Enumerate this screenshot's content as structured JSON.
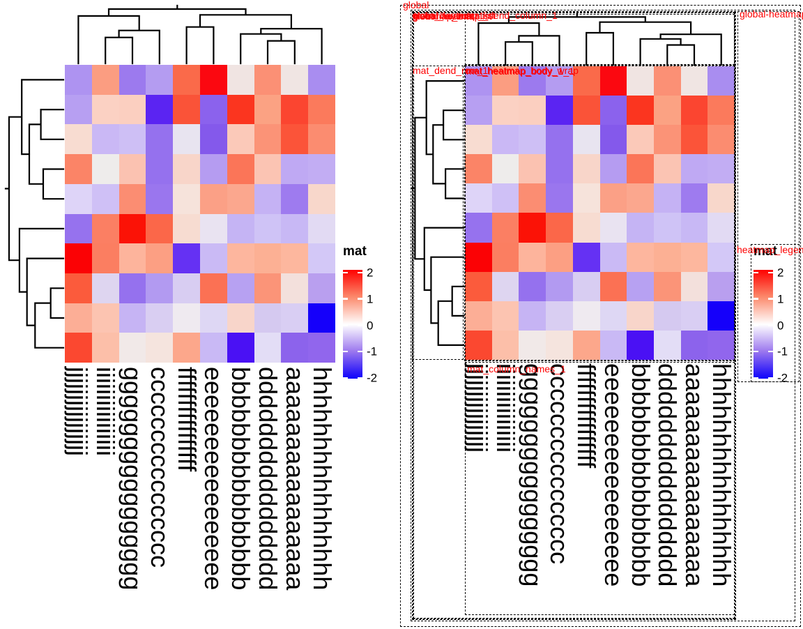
{
  "chart_data": {
    "type": "heatmap",
    "matrix_name": "mat",
    "n_rows": 10,
    "n_cols": 10,
    "columns": [
      "jjjjjjjjjjjjjjjj",
      "iiiiiiiiiiiiiiii",
      "gggggggggggggggg",
      "cccccccccccccccc",
      "ffffffffffffffff",
      "eeeeeeeeeeeeeeee",
      "bbbbbbbbbbbbbbbb",
      "dddddddddddddddd",
      "aaaaaaaaaaaaaaaa",
      "hhhhhhhhhhhhhhhh"
    ],
    "row_labels_visible": false,
    "values": [
      [
        -0.9,
        0.75,
        -1.15,
        -0.85,
        1.3,
        1.95,
        0.15,
        0.85,
        0.1,
        -0.95
      ],
      [
        -0.8,
        0.35,
        0.4,
        -1.8,
        1.45,
        -1.3,
        1.7,
        0.7,
        1.6,
        1.05
      ],
      [
        0.3,
        -0.6,
        -0.55,
        -1.2,
        -0.15,
        -1.4,
        0.4,
        0.85,
        1.4,
        0.9
      ],
      [
        1.0,
        0.05,
        0.5,
        -1.2,
        0.35,
        -0.85,
        1.1,
        0.45,
        -0.75,
        -0.7
      ],
      [
        -0.35,
        -0.55,
        0.9,
        -1.15,
        0.2,
        0.75,
        0.65,
        -0.65,
        -1.1,
        0.3
      ],
      [
        -1.2,
        1.0,
        1.9,
        1.2,
        0.3,
        -0.2,
        -0.65,
        -0.55,
        -0.6,
        -0.3
      ],
      [
        2.0,
        1.0,
        0.55,
        0.75,
        -1.65,
        -0.6,
        0.55,
        0.6,
        0.55,
        -0.5
      ],
      [
        1.3,
        -0.35,
        -1.2,
        -0.9,
        -0.45,
        1.1,
        -0.8,
        0.8,
        0.2,
        -0.75
      ],
      [
        0.6,
        0.45,
        -0.65,
        -0.4,
        -0.1,
        -0.35,
        0.3,
        -0.45,
        -0.4,
        -2.0
      ],
      [
        1.55,
        0.5,
        0.1,
        0.15,
        0.65,
        -0.6,
        -1.75,
        -0.25,
        -1.35,
        -1.3
      ]
    ],
    "cell_colors": [
      [
        "#ae93f1",
        "#fb9d81",
        "#9c7aee",
        "#b49cf1",
        "#fa6a4a",
        "#fb0810",
        "#f0e4e2",
        "#fb9075",
        "#f0e5e3",
        "#a98df0"
      ],
      [
        "#b79ff2",
        "#fbd1c3",
        "#fbcfc0",
        "#5b24f2",
        "#fa5338",
        "#8b62ed",
        "#fb351f",
        "#fba283",
        "#fb4530",
        "#fb7a5c"
      ],
      [
        "#f8dcd1",
        "#cab8f5",
        "#cebff5",
        "#9571ee",
        "#e8e4f0",
        "#8459eb",
        "#fbc9b9",
        "#fb9377",
        "#fb5439",
        "#fb8c70"
      ],
      [
        "#fb8467",
        "#eeeceb",
        "#fbc2b1",
        "#9571ee",
        "#f8d5c9",
        "#b59cf1",
        "#fb7558",
        "#fbc4b3",
        "#bfa9f3",
        "#c2adf3"
      ],
      [
        "#ded4f8",
        "#cfc0f6",
        "#fb8d72",
        "#9a76ee",
        "#f6e3db",
        "#fba086",
        "#fba78e",
        "#c5b2f4",
        "#9e7bef",
        "#f8d7cb"
      ],
      [
        "#9672ee",
        "#fb7f63",
        "#fb1206",
        "#fb6749",
        "#f7dcd1",
        "#e9e3f1",
        "#c5b4f4",
        "#cfc3f6",
        "#c8b8f5",
        "#e2daf3"
      ],
      [
        "#fb0205",
        "#fb7e61",
        "#fdb49c",
        "#fc9f83",
        "#6531f3",
        "#cabaf5",
        "#fdb69e",
        "#fcb094",
        "#fdb79e",
        "#d3c8f7"
      ],
      [
        "#fb5b3c",
        "#ded5f0",
        "#9571ee",
        "#b29af1",
        "#d8cdf2",
        "#fb7154",
        "#b7a1f2",
        "#fb9478",
        "#f3e0dc",
        "#b99fef"
      ],
      [
        "#fcae96",
        "#fcc4b1",
        "#c6b4f4",
        "#d9cef2",
        "#efeaf0",
        "#ded7f4",
        "#f8d5ca",
        "#d5c9f0",
        "#d9cef3",
        "#1500fa"
      ],
      [
        "#fb4830",
        "#fcbfa9",
        "#f1e9e8",
        "#f5e4de",
        "#fca78b",
        "#c9b9f5",
        "#4a11f4",
        "#e3ddf6",
        "#8c63ec",
        "#9166ed"
      ]
    ],
    "legend": {
      "title": "mat",
      "ticks": [
        "2",
        "1",
        "0",
        "-1",
        "-2"
      ],
      "tick_values": [
        2,
        1,
        0,
        -1,
        -2
      ],
      "range": [
        -2,
        2
      ],
      "gradient": [
        "#fe0100",
        "#fc8a6c",
        "#ffffff",
        "#9b77ee",
        "#0d00fb"
      ]
    },
    "column_dendrogram": {
      "leaves": 10,
      "tree": {
        "h": 0.94,
        "c": [
          {
            "h": 0.82,
            "c": [
              0,
              {
                "h": 0.57,
                "c": [
                  {
                    "h": 0.45,
                    "c": [
                      1,
                      2
                    ]
                  },
                  3
                ]
              }
            ]
          },
          {
            "h": 0.84,
            "c": [
              {
                "h": 0.63,
                "c": [
                  4,
                  5
                ]
              },
              {
                "h": 0.6,
                "c": [
                  {
                    "h": 0.51,
                    "c": [
                      6,
                      {
                        "h": 0.39,
                        "c": [
                          7,
                          8
                        ]
                      }
                    ]
                  },
                  9
                ]
              }
            ]
          }
        ]
      }
    },
    "row_dendrogram": {
      "leaves": 10,
      "tree": {
        "h": 0.94,
        "c": [
          {
            "h": 0.72,
            "c": [
              0,
              {
                "h": 0.59,
                "c": [
                  {
                    "h": 0.39,
                    "c": [
                      1,
                      2
                    ]
                  },
                  {
                    "h": 0.35,
                    "c": [
                      3,
                      4
                    ]
                  }
                ]
              }
            ]
          },
          {
            "h": 0.76,
            "c": [
              5,
              {
                "h": 0.63,
                "c": [
                  6,
                  {
                    "h": 0.49,
                    "c": [
                      {
                        "h": 0.22,
                        "c": [
                          7,
                          8
                        ]
                      },
                      9
                    ]
                  }
                ]
              }
            ]
          }
        ]
      }
    }
  },
  "right_panel": {
    "viewport_labels": [
      "global",
      "global_layout",
      "global-heatmaplist",
      "main_heatmap_list",
      "heatmap_mat",
      "mat_dend_column_1",
      "mat_dend_row_1",
      "mat_heatmap_body_wrap",
      "mat_heatmap_body_1_1",
      "mat_column_names_1",
      "global-heatmap_legend",
      "heatmap_legend"
    ]
  },
  "colors": {
    "viewport_label": "#fe0000",
    "dendrogram": "#000000",
    "dashed_box": "#000000",
    "background": "#ffffff"
  }
}
